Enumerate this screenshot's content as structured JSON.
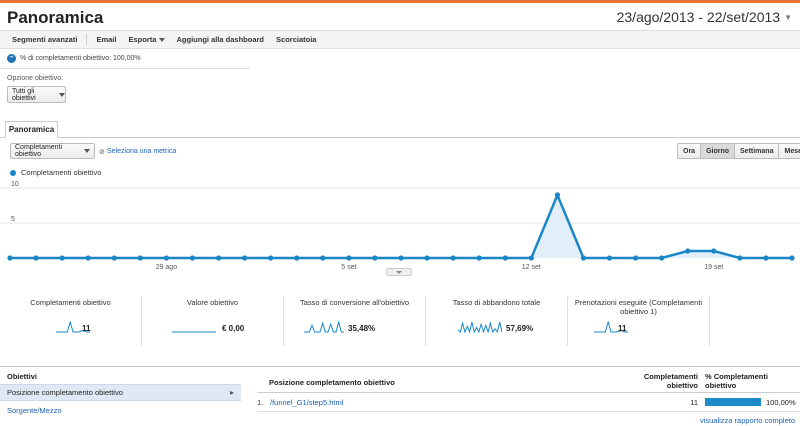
{
  "header": {
    "title": "Panoramica",
    "date_range": "23/ago/2013 - 22/set/2013"
  },
  "toolbar": {
    "items": [
      "Segmenti avanzati",
      "Email",
      "Esporta",
      "Aggiungi alla dashboard",
      "Scorciatoia"
    ]
  },
  "segment": {
    "label": "% di completamenti obiettivo: 100,00%"
  },
  "goal_option": {
    "label": "Opzione obiettivo:",
    "selected": "Tutti gli obiettivi"
  },
  "tab": {
    "label": "Panoramica"
  },
  "metric_selector": {
    "selected": "Completamenti obiettivo",
    "vs": "⊘",
    "select_metric": "Seleziona una metrica"
  },
  "granularity": {
    "options": [
      "Ora",
      "Giorno",
      "Settimana",
      "Mese"
    ],
    "active": "Giorno"
  },
  "chart_data": {
    "type": "area",
    "legend": "Completamenti obiettivo",
    "ytick_labels": [
      "10",
      "5"
    ],
    "ylim": [
      0,
      10
    ],
    "xtick_labels": [
      "29 ago",
      "5 set",
      "12 set",
      "19 set"
    ],
    "xtick_index": [
      6,
      13,
      20,
      27
    ],
    "series": [
      {
        "name": "Completamenti obiettivo",
        "values": [
          0,
          0,
          0,
          0,
          0,
          0,
          0,
          0,
          0,
          0,
          0,
          0,
          0,
          0,
          0,
          0,
          0,
          0,
          0,
          0,
          0,
          9,
          0,
          0,
          0,
          0,
          1,
          1,
          0,
          0,
          0
        ],
        "color": "#1a86c8"
      }
    ]
  },
  "metrics": [
    {
      "label": "Completamenti obiettivo",
      "value": "11",
      "spark": "spike"
    },
    {
      "label": "Valore obiettivo",
      "value": "€ 0,00",
      "spark": "flat"
    },
    {
      "label": "Tasso di conversione all'obiettivo",
      "value": "35,48%",
      "spark": "multi"
    },
    {
      "label": "Tasso di abbandono totale",
      "value": "57,69%",
      "spark": "dense"
    },
    {
      "label": "Prenotazioni eseguite (Completamenti obiettivo 1)",
      "value": "11",
      "spark": "spike"
    }
  ],
  "objectives": {
    "heading": "Obiettivi",
    "selected": "Posizione completamento obiettivo",
    "link": "Sorgente/Mezzo"
  },
  "table": {
    "col_position": "Posizione completamento obiettivo",
    "col_completions": "Completamenti obiettivo",
    "col_percent": "% Completamenti obiettivo",
    "rows": [
      {
        "num": "1.",
        "path": "/funnel_G1/step5.html",
        "value": "11",
        "percent": "100,00%",
        "share": 1.0
      }
    ],
    "full_report": "visualizza rapporto completo"
  },
  "colors": {
    "accent": "#e8742f",
    "line": "#1a86c8",
    "link": "#1a63b4"
  }
}
